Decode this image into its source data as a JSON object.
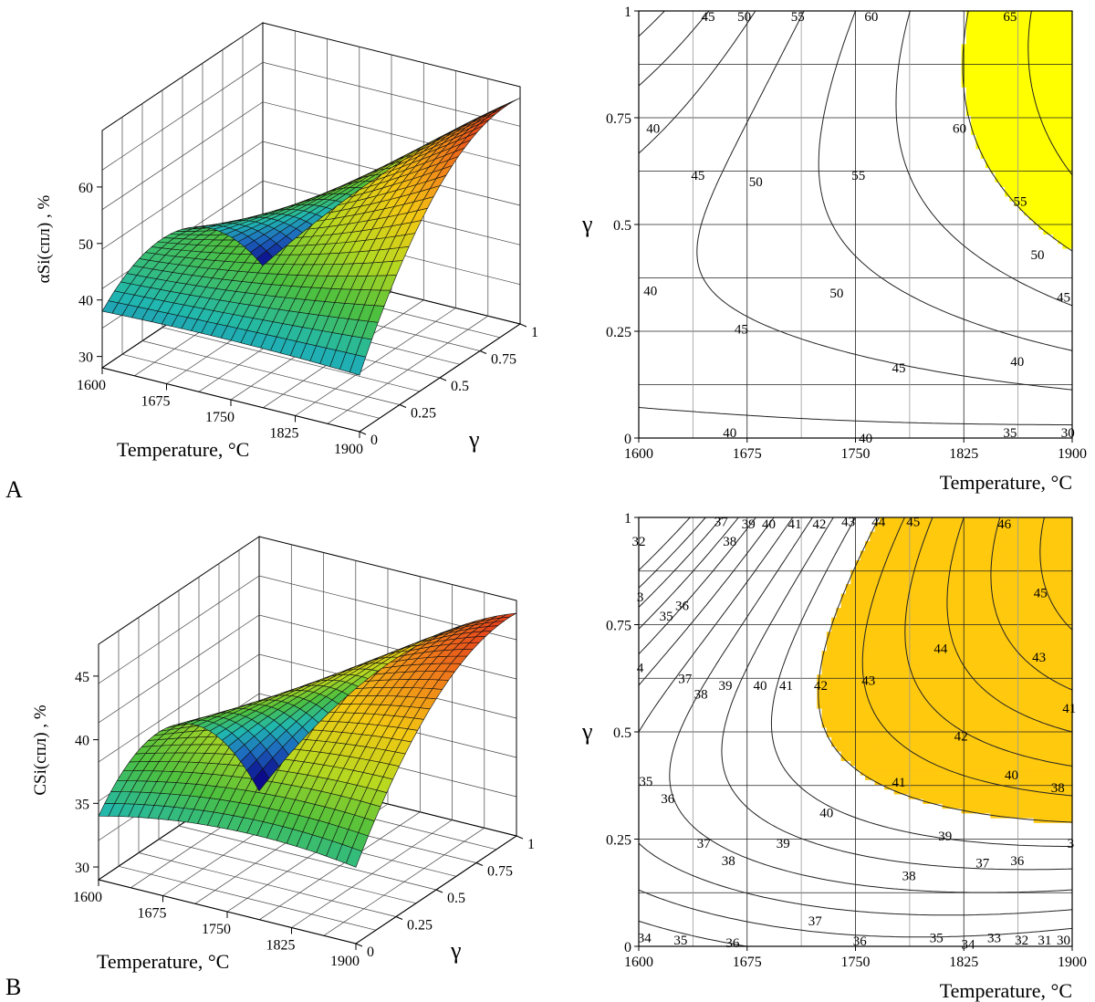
{
  "panel_labels": [
    "A",
    "B"
  ],
  "chart_data": [
    {
      "type": "surface3d",
      "panel": "A",
      "xlabel": "Temperature, °C",
      "ylabel": "γ",
      "zlabel": "αSi(спл) , %",
      "x_ticks": [
        "1600",
        "1675",
        "1750",
        "1825",
        "1900"
      ],
      "y_ticks": [
        "0",
        "0.25",
        "0.5",
        "0.75",
        "1"
      ],
      "z_ticks": [
        "30",
        "40",
        "50",
        "60"
      ],
      "xlim": [
        1600,
        1900
      ],
      "ylim": [
        0,
        1
      ],
      "zlim": [
        28,
        70
      ],
      "surface_samples": {
        "x": [
          1600,
          1750,
          1900
        ],
        "y": [
          0,
          0.5,
          1
        ],
        "z": [
          [
            38.0,
            38.5,
            38.0
          ],
          [
            43.0,
            51.0,
            62.0
          ],
          [
            27.0,
            50.0,
            68.0
          ]
        ]
      },
      "colormap": [
        "#0b0b8c",
        "#1e6bc0",
        "#20b8b0",
        "#4cc03e",
        "#b8d820",
        "#f3c813",
        "#ef7a1a",
        "#e01e1e"
      ]
    },
    {
      "type": "contour",
      "panel": "A",
      "xlabel": "Temperature, °C",
      "ylabel": "γ",
      "x_ticks": [
        "1600",
        "1675",
        "1750",
        "1825",
        "1900"
      ],
      "y_ticks": [
        "0",
        "0.25",
        "0.5",
        "0.75",
        "1"
      ],
      "xlim": [
        1600,
        1900
      ],
      "ylim": [
        0,
        1
      ],
      "levels": [
        30,
        35,
        40,
        45,
        50,
        55,
        60,
        65
      ],
      "highlight": {
        "min_level": 60,
        "color": "#ffff00"
      },
      "contour_labels": [
        {
          "text": "45",
          "x": 1648,
          "y": 0.987
        },
        {
          "text": "50",
          "x": 1673,
          "y": 0.987
        },
        {
          "text": "55",
          "x": 1710,
          "y": 0.987
        },
        {
          "text": "60",
          "x": 1761,
          "y": 0.987
        },
        {
          "text": "65",
          "x": 1857,
          "y": 0.987
        },
        {
          "text": "40",
          "x": 1610,
          "y": 0.725
        },
        {
          "text": "60",
          "x": 1822,
          "y": 0.725
        },
        {
          "text": "45",
          "x": 1641,
          "y": 0.615
        },
        {
          "text": "55",
          "x": 1752,
          "y": 0.615
        },
        {
          "text": "50",
          "x": 1681,
          "y": 0.6
        },
        {
          "text": "55",
          "x": 1864,
          "y": 0.555
        },
        {
          "text": "50",
          "x": 1876,
          "y": 0.43
        },
        {
          "text": "40",
          "x": 1608,
          "y": 0.345
        },
        {
          "text": "50",
          "x": 1737,
          "y": 0.34
        },
        {
          "text": "45",
          "x": 1894,
          "y": 0.33
        },
        {
          "text": "45",
          "x": 1671,
          "y": 0.255
        },
        {
          "text": "45",
          "x": 1780,
          "y": 0.165
        },
        {
          "text": "40",
          "x": 1862,
          "y": 0.18
        },
        {
          "text": "40",
          "x": 1663,
          "y": 0.013
        },
        {
          "text": "40",
          "x": 1757,
          "y": 0.0
        },
        {
          "text": "35",
          "x": 1857,
          "y": 0.013
        },
        {
          "text": "30",
          "x": 1897,
          "y": 0.013
        }
      ]
    },
    {
      "type": "surface3d",
      "panel": "B",
      "xlabel": "Temperature, °C",
      "ylabel": "γ",
      "zlabel": "CSi(спл) , %",
      "x_ticks": [
        "1600",
        "1675",
        "1750",
        "1825",
        "1900"
      ],
      "y_ticks": [
        "0",
        "0.25",
        "0.5",
        "0.75",
        "1"
      ],
      "z_ticks": [
        "30",
        "35",
        "40",
        "45"
      ],
      "xlim": [
        1600,
        1900
      ],
      "ylim": [
        0,
        1
      ],
      "zlim": [
        29,
        47.5
      ],
      "surface_samples": {
        "x": [
          1600,
          1750,
          1900
        ],
        "y": [
          0,
          0.5,
          1
        ],
        "z": [
          [
            34.0,
            35.5,
            35.0
          ],
          [
            37.0,
            41.5,
            44.0
          ],
          [
            27.5,
            40.0,
            46.5
          ]
        ]
      },
      "colormap": [
        "#0b0b8c",
        "#1e6bc0",
        "#20b8b0",
        "#4cc03e",
        "#b8d820",
        "#f3c813",
        "#ef7a1a",
        "#e01e1e"
      ]
    },
    {
      "type": "contour",
      "panel": "B",
      "xlabel": "Temperature, °C",
      "ylabel": "γ",
      "x_ticks": [
        "1600",
        "1675",
        "1750",
        "1825",
        "1900"
      ],
      "y_ticks": [
        "0",
        "0.25",
        "0.5",
        "0.75",
        "1"
      ],
      "xlim": [
        1600,
        1900
      ],
      "ylim": [
        0,
        1
      ],
      "levels": [
        31,
        32,
        33,
        34,
        35,
        36,
        37,
        38,
        39,
        40,
        41,
        42,
        43,
        44,
        45,
        46
      ],
      "highlight": {
        "min_level": 41,
        "color": "#ffc90e"
      },
      "contour_labels": [
        {
          "text": "37",
          "x": 1657,
          "y": 0.99
        },
        {
          "text": "39",
          "x": 1676,
          "y": 0.985
        },
        {
          "text": "40",
          "x": 1690,
          "y": 0.985
        },
        {
          "text": "41",
          "x": 1708,
          "y": 0.985
        },
        {
          "text": "42",
          "x": 1725,
          "y": 0.985
        },
        {
          "text": "43",
          "x": 1745,
          "y": 0.99
        },
        {
          "text": "44",
          "x": 1766,
          "y": 0.99
        },
        {
          "text": "45",
          "x": 1790,
          "y": 0.99
        },
        {
          "text": "46",
          "x": 1853,
          "y": 0.985
        },
        {
          "text": "32",
          "x": 1600,
          "y": 0.945
        },
        {
          "text": "38",
          "x": 1663,
          "y": 0.945
        },
        {
          "text": "45",
          "x": 1878,
          "y": 0.825
        },
        {
          "text": "3",
          "x": 1601,
          "y": 0.815
        },
        {
          "text": "36",
          "x": 1630,
          "y": 0.795
        },
        {
          "text": "35",
          "x": 1619,
          "y": 0.77
        },
        {
          "text": "44",
          "x": 1809,
          "y": 0.695
        },
        {
          "text": "43",
          "x": 1877,
          "y": 0.675
        },
        {
          "text": "4",
          "x": 1601,
          "y": 0.65
        },
        {
          "text": "37",
          "x": 1632,
          "y": 0.625
        },
        {
          "text": "38",
          "x": 1643,
          "y": 0.588
        },
        {
          "text": "39",
          "x": 1660,
          "y": 0.608
        },
        {
          "text": "40",
          "x": 1684,
          "y": 0.608
        },
        {
          "text": "41",
          "x": 1702,
          "y": 0.608
        },
        {
          "text": "42",
          "x": 1726,
          "y": 0.608
        },
        {
          "text": "43",
          "x": 1759,
          "y": 0.62
        },
        {
          "text": "41",
          "x": 1898,
          "y": 0.555
        },
        {
          "text": "42",
          "x": 1823,
          "y": 0.49
        },
        {
          "text": "40",
          "x": 1858,
          "y": 0.4
        },
        {
          "text": "41",
          "x": 1780,
          "y": 0.383
        },
        {
          "text": "35",
          "x": 1605,
          "y": 0.385
        },
        {
          "text": "38",
          "x": 1890,
          "y": 0.37
        },
        {
          "text": "36",
          "x": 1620,
          "y": 0.345
        },
        {
          "text": "40",
          "x": 1730,
          "y": 0.312
        },
        {
          "text": "39",
          "x": 1812,
          "y": 0.257
        },
        {
          "text": "37",
          "x": 1645,
          "y": 0.24
        },
        {
          "text": "39",
          "x": 1700,
          "y": 0.24
        },
        {
          "text": "3",
          "x": 1899,
          "y": 0.24
        },
        {
          "text": "38",
          "x": 1662,
          "y": 0.2
        },
        {
          "text": "37",
          "x": 1838,
          "y": 0.195
        },
        {
          "text": "36",
          "x": 1862,
          "y": 0.2
        },
        {
          "text": "38",
          "x": 1787,
          "y": 0.165
        },
        {
          "text": "37",
          "x": 1722,
          "y": 0.06
        },
        {
          "text": "36",
          "x": 1753,
          "y": 0.013
        },
        {
          "text": "35",
          "x": 1806,
          "y": 0.02
        },
        {
          "text": "34",
          "x": 1828,
          "y": 0.005
        },
        {
          "text": "33",
          "x": 1846,
          "y": 0.02
        },
        {
          "text": "32",
          "x": 1865,
          "y": 0.015
        },
        {
          "text": "31",
          "x": 1881,
          "y": 0.015
        },
        {
          "text": "30",
          "x": 1894,
          "y": 0.015
        },
        {
          "text": "34",
          "x": 1604,
          "y": 0.02
        },
        {
          "text": "35",
          "x": 1629,
          "y": 0.015
        },
        {
          "text": "36",
          "x": 1665,
          "y": 0.008
        }
      ]
    }
  ]
}
